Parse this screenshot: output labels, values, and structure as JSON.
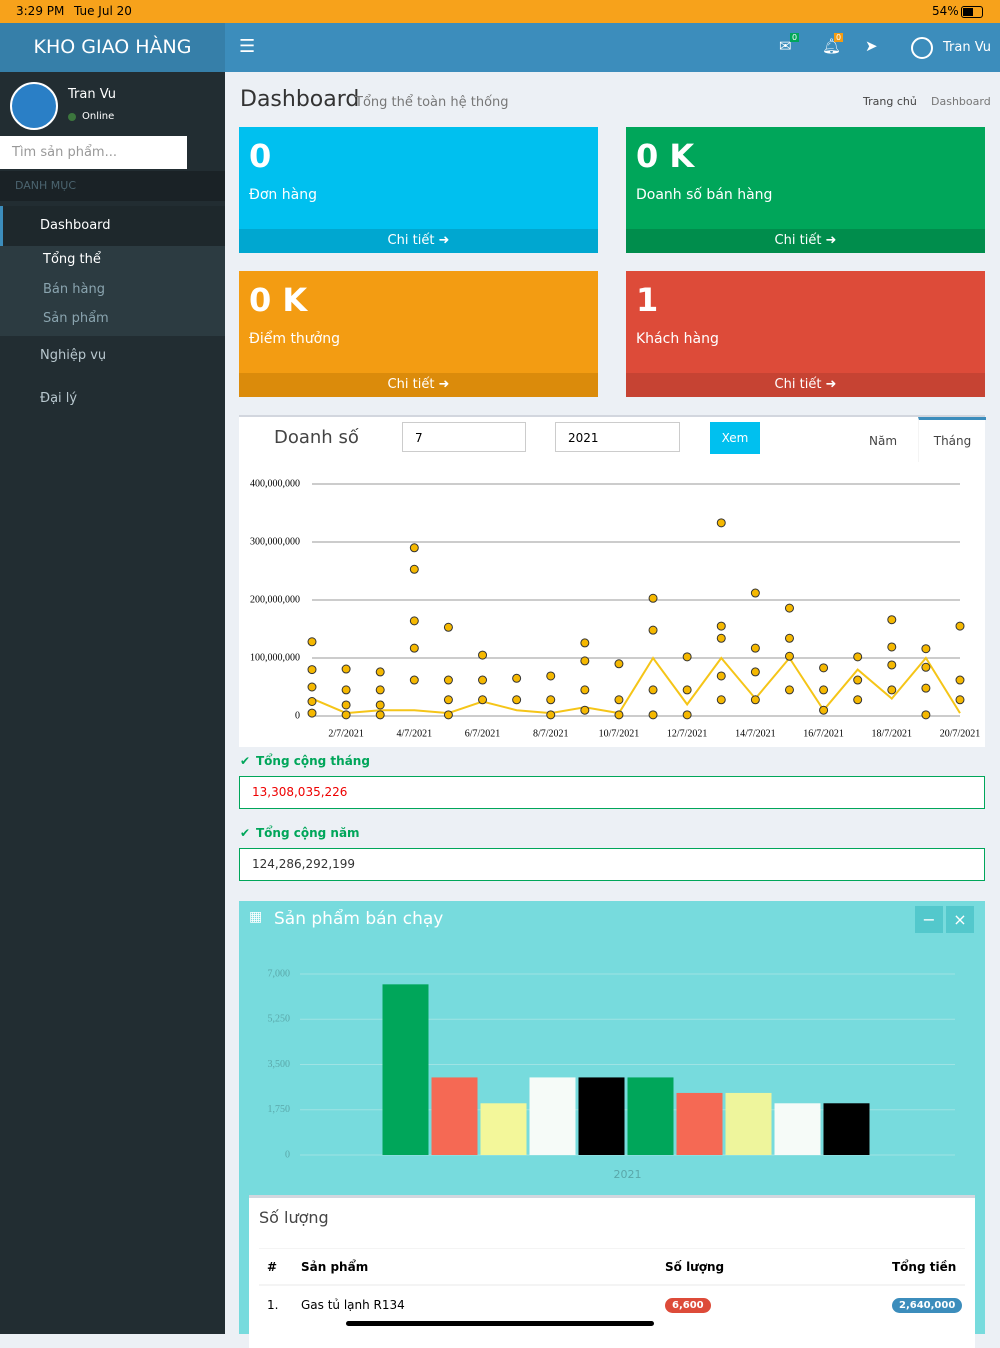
{
  "status_bar": {
    "time": "3:29 PM",
    "date": "Tue Jul 20",
    "battery": "54%"
  },
  "header": {
    "brand": "KHO GIAO HÀNG",
    "mail_badge": "0",
    "bell_badge": "0",
    "user": "Tran Vu"
  },
  "sidebar": {
    "user": "Tran Vu",
    "status": "Online",
    "search_placeholder": "Tìm sản phẩm...",
    "section": "DANH MỤC",
    "menu": [
      {
        "label": "Dashboard",
        "children": [
          "Tổng thể",
          "Bán hàng",
          "Sản phẩm"
        ]
      },
      {
        "label": "Nghiệp vụ"
      },
      {
        "label": "Đại lý"
      }
    ]
  },
  "content": {
    "title": "Dashboard",
    "subtitle": "Tổng thể toàn hệ thống",
    "breadcrumb": [
      "Trang chủ",
      "Dashboard"
    ],
    "stat_boxes": [
      {
        "value": "0",
        "label": "Đơn hàng",
        "link": "Chi tiết",
        "color": "#00c0ef",
        "footer_color": "#00a7d0"
      },
      {
        "value": "0 K",
        "label": "Doanh số bán hàng",
        "link": "Chi tiết",
        "color": "#00a65a",
        "footer_color": "#008d4c"
      },
      {
        "value": "0 K",
        "label": "Điểm thưởng",
        "link": "Chi tiết",
        "color": "#f39c12",
        "footer_color": "#db8b0b"
      },
      {
        "value": "1",
        "label": "Khách hàng",
        "link": "Chi tiết",
        "color": "#dd4b39",
        "footer_color": "#c64333"
      }
    ],
    "sales_panel": {
      "title": "Doanh số",
      "month": "7",
      "year": "2021",
      "button": "Xem",
      "tabs": [
        "Năm",
        "Tháng"
      ],
      "month_total_label": "Tổng cộng tháng",
      "month_total": "13,308,035,226",
      "year_total_label": "Tổng cộng năm",
      "year_total": "124,286,292,199"
    },
    "top_products": {
      "title": "Sản phẩm bán chạy",
      "table": {
        "title": "Số lượng",
        "columns": [
          "#",
          "Sản phẩm",
          "Số lượng",
          "Tổng tiền"
        ],
        "rows": [
          [
            "1.",
            "Gas tủ lạnh R134",
            "6,600",
            "2,640,000"
          ]
        ]
      }
    }
  },
  "chart_data": [
    {
      "type": "scatter",
      "categories": [
        null,
        "2/7/2021",
        null,
        "4/7/2021",
        null,
        "6/7/2021",
        null,
        "8/7/2021",
        null,
        "10/7/2021",
        null,
        "12/7/2021",
        null,
        "14/7/2021",
        null,
        "16/7/2021",
        null,
        "18/7/2021",
        null,
        "20/7/2021"
      ],
      "ylim": [
        0,
        400000000
      ],
      "yticks": [
        0,
        {
          "value": 100000000,
          "label": "100,000,000"
        },
        {
          "value": 200000000,
          "label": "200,000,000"
        },
        {
          "value": 300000000,
          "label": "300,000,000"
        },
        {
          "value": 400000000,
          "label": "400,000,000"
        }
      ],
      "grid": true,
      "series": [
        {
          "type": "scatter",
          "color": "#f5b800",
          "values": [
            128000000,
            81000000,
            76000000,
            290000000,
            153000000,
            105000000,
            65000000,
            69000000,
            126000000,
            90000000,
            203000000,
            102000000,
            333000000,
            212000000,
            186000000,
            83000000,
            102000000,
            166000000,
            116000000,
            155000000
          ]
        },
        {
          "type": "scatter",
          "color": "#f5b800",
          "values": [
            80000000,
            45000000,
            45000000,
            253000000,
            62000000,
            62000000,
            28000000,
            28000000,
            95000000,
            28000000,
            148000000,
            45000000,
            155000000,
            117000000,
            134000000,
            45000000,
            62000000,
            119000000,
            84000000,
            62000000
          ]
        },
        {
          "type": "scatter",
          "color": "#f5b800",
          "values": [
            50000000,
            19000000,
            19000000,
            164000000,
            28000000,
            28000000,
            null,
            2000000,
            45000000,
            2000000,
            45000000,
            2000000,
            134000000,
            76000000,
            103000000,
            10000000,
            28000000,
            88000000,
            48000000,
            28000000
          ]
        },
        {
          "type": "scatter",
          "color": "#f5b800",
          "values": [
            25000000,
            2000000,
            2000000,
            117000000,
            2000000,
            null,
            null,
            null,
            10000000,
            null,
            2000000,
            null,
            69000000,
            28000000,
            45000000,
            null,
            null,
            45000000,
            2000000,
            null
          ]
        },
        {
          "type": "scatter",
          "color": "#f5b800",
          "values": [
            5000000,
            null,
            null,
            62000000,
            null,
            null,
            null,
            null,
            null,
            null,
            null,
            null,
            28000000,
            null,
            null,
            null,
            null,
            null,
            null,
            null
          ]
        },
        {
          "type": "line",
          "color": "#f5c518",
          "values": [
            30000000,
            5000000,
            10000000,
            10000000,
            5000000,
            25000000,
            10000000,
            5000000,
            15000000,
            5000000,
            100000000,
            20000000,
            100000000,
            30000000,
            100000000,
            10000000,
            80000000,
            30000000,
            100000000,
            5000000
          ]
        }
      ]
    },
    {
      "type": "bar",
      "categories": [
        "2021"
      ],
      "ylim": [
        0,
        7000
      ],
      "yticks": [
        0,
        {
          "value": 1750,
          "label": "1,750"
        },
        {
          "value": 3500,
          "label": "3,500"
        },
        {
          "value": 5250,
          "label": "5,250"
        },
        {
          "value": 7000,
          "label": "7,000"
        }
      ],
      "grid": true,
      "series": [
        {
          "color": "#00a65a",
          "values": [
            6600
          ]
        },
        {
          "color": "#f56954",
          "values": [
            3000
          ]
        },
        {
          "color": "#f3f79a",
          "values": [
            2000
          ]
        },
        {
          "color": "#f6fbf8",
          "values": [
            3000
          ]
        },
        {
          "color": "#000000",
          "values": [
            3000
          ]
        },
        {
          "color": "#00a65a",
          "values": [
            3000
          ]
        },
        {
          "color": "#f56954",
          "values": [
            2400
          ]
        },
        {
          "color": "#eef59c",
          "values": [
            2400
          ]
        },
        {
          "color": "#f6fbf8",
          "values": [
            2000
          ]
        },
        {
          "color": "#000000",
          "values": [
            2000
          ]
        }
      ]
    }
  ]
}
